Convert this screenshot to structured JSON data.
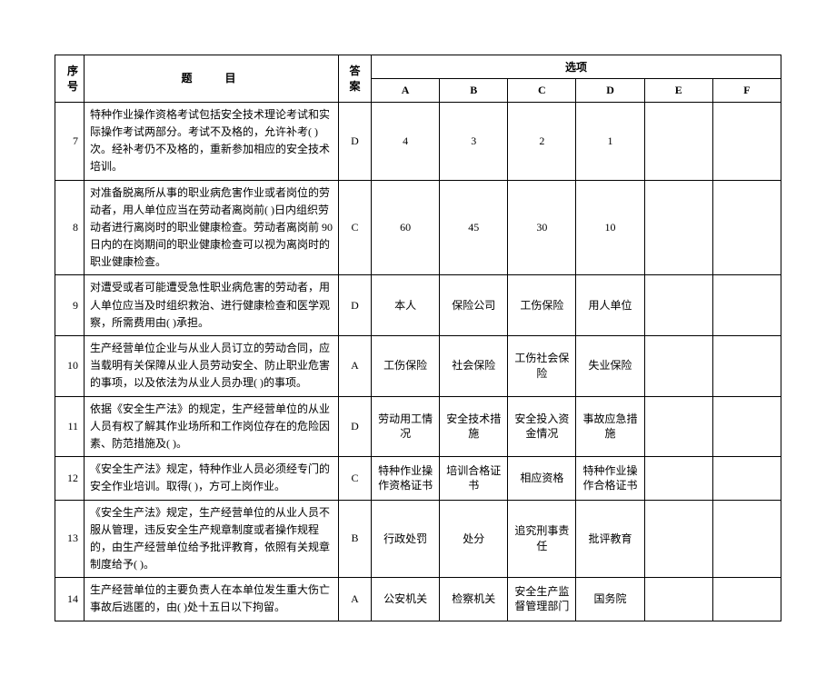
{
  "headers": {
    "num": "序号",
    "question": "题　目",
    "answer": "答案",
    "options": "选项",
    "A": "A",
    "B": "B",
    "C": "C",
    "D": "D",
    "E": "E",
    "F": "F"
  },
  "rows": [
    {
      "num": "7",
      "question": "特种作业操作资格考试包括安全技术理论考试和实际操作考试两部分。考试不及格的，允许补考( )次。经补考仍不及格的，重新参加相应的安全技术培训。",
      "answer": "D",
      "A": "4",
      "B": "3",
      "C": "2",
      "D": "1",
      "E": "",
      "F": ""
    },
    {
      "num": "8",
      "question": "对准备脱离所从事的职业病危害作业或者岗位的劳动者，用人单位应当在劳动者离岗前( )日内组织劳动者进行离岗时的职业健康检查。劳动者离岗前 90 日内的在岗期间的职业健康检查可以视为离岗时的职业健康检查。",
      "answer": "C",
      "A": "60",
      "B": "45",
      "C": "30",
      "D": "10",
      "E": "",
      "F": ""
    },
    {
      "num": "9",
      "question": "对遭受或者可能遭受急性职业病危害的劳动者，用人单位应当及时组织救治、进行健康检查和医学观察，所需费用由( )承担。",
      "answer": "D",
      "A": "本人",
      "B": "保险公司",
      "C": "工伤保险",
      "D": "用人单位",
      "E": "",
      "F": ""
    },
    {
      "num": "10",
      "question": "生产经营单位企业与从业人员订立的劳动合同，应当载明有关保障从业人员劳动安全、防止职业危害的事项，以及依法为从业人员办理( )的事项。",
      "answer": "A",
      "A": "工伤保险",
      "B": "社会保险",
      "C": "工伤社会保险",
      "D": "失业保险",
      "E": "",
      "F": ""
    },
    {
      "num": "11",
      "question": "依据《安全生产法》的规定，生产经营单位的从业人员有权了解其作业场所和工作岗位存在的危险因素、防范措施及( )。",
      "answer": "D",
      "A": "劳动用工情况",
      "B": "安全技术措施",
      "C": "安全投入资金情况",
      "D": "事故应急措施",
      "E": "",
      "F": ""
    },
    {
      "num": "12",
      "question": "《安全生产法》规定，特种作业人员必须经专门的安全作业培训。取得( )，方可上岗作业。",
      "answer": "C",
      "A": "特种作业操作资格证书",
      "B": "培训合格证书",
      "C": "相应资格",
      "D": "特种作业操作合格证书",
      "E": "",
      "F": ""
    },
    {
      "num": "13",
      "question": "《安全生产法》规定，生产经营单位的从业人员不服从管理，违反安全生产规章制度或者操作规程的，由生产经营单位给予批评教育，依照有关规章制度给予( )。",
      "answer": "B",
      "A": "行政处罚",
      "B": "处分",
      "C": "追究刑事责任",
      "D": "批评教育",
      "E": "",
      "F": ""
    },
    {
      "num": "14",
      "question": "生产经营单位的主要负责人在本单位发生重大伤亡事故后逃匿的，由( )处十五日以下拘留。",
      "answer": "A",
      "A": "公安机关",
      "B": "检察机关",
      "C": "安全生产监督管理部门",
      "D": "国务院",
      "E": "",
      "F": ""
    }
  ]
}
